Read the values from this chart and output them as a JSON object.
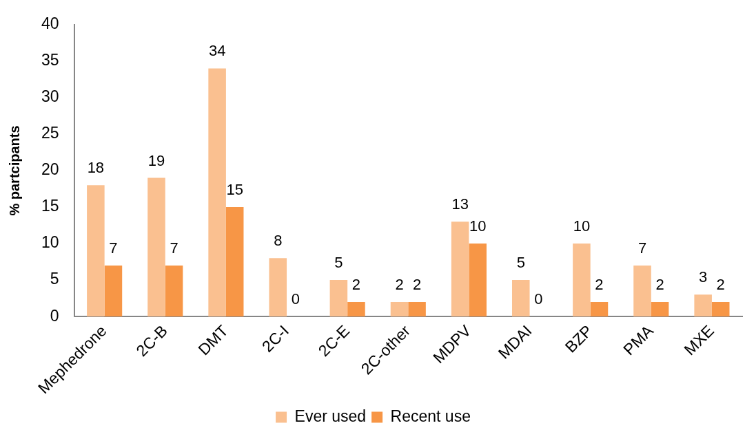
{
  "chart_data": {
    "type": "bar",
    "ylabel": "% partcipants",
    "categories": [
      "Mephedrone",
      "2C-B",
      "DMT",
      "2C-I",
      "2C-E",
      "2C-other",
      "MDPV",
      "MDAI",
      "BZP",
      "PMA",
      "MXE"
    ],
    "series": [
      {
        "name": "Ever used",
        "color": "#fac090",
        "values": [
          18,
          19,
          34,
          8,
          5,
          2,
          13,
          5,
          10,
          7,
          3
        ]
      },
      {
        "name": "Recent use",
        "color": "#f79646",
        "values": [
          7,
          7,
          15,
          0,
          2,
          2,
          10,
          0,
          2,
          2,
          2
        ]
      }
    ],
    "ylim": [
      0,
      40
    ],
    "yticks": [
      0,
      5,
      10,
      15,
      20,
      25,
      30,
      35,
      40
    ],
    "data_labels": true,
    "legend": "bottom"
  }
}
